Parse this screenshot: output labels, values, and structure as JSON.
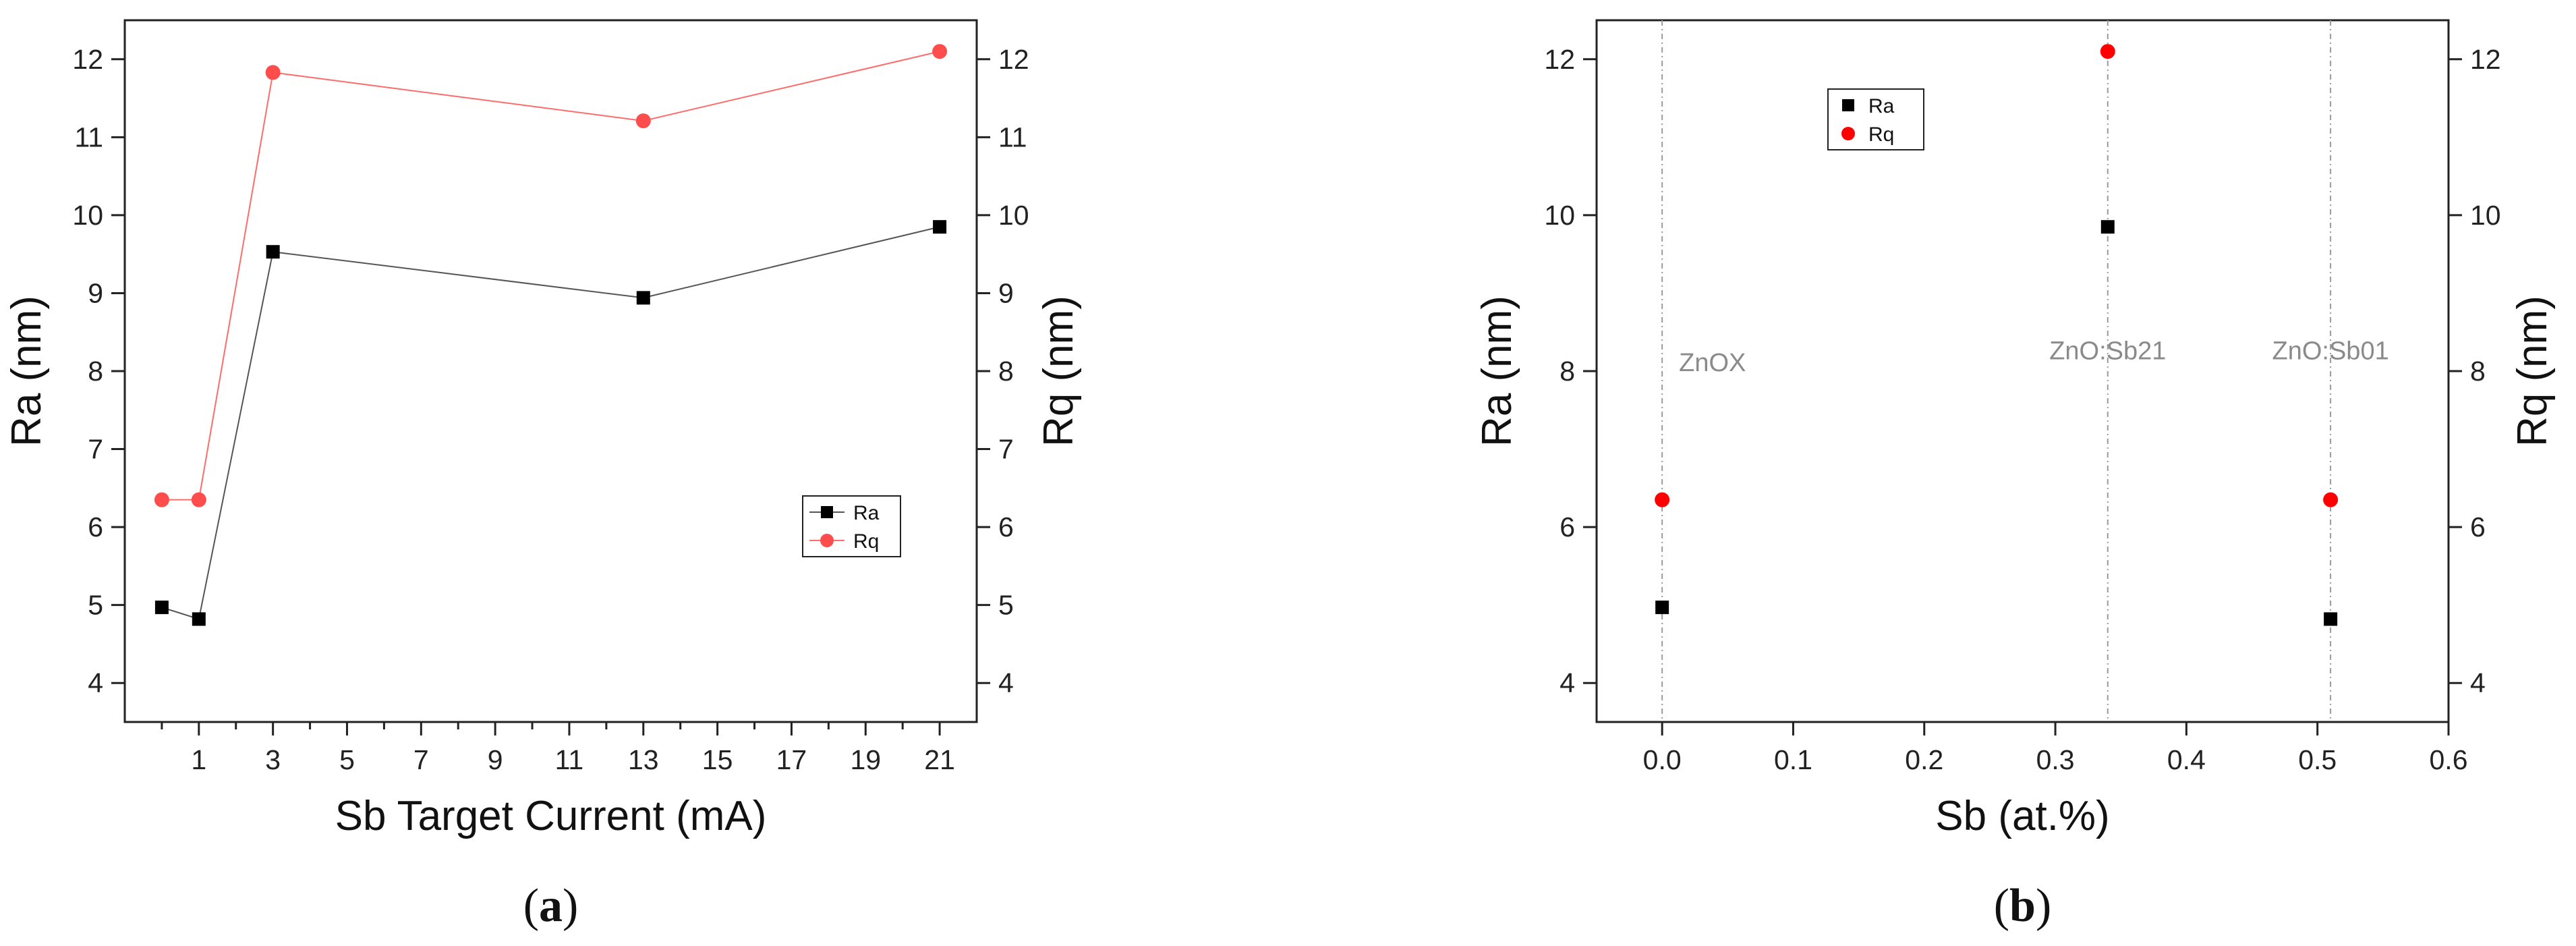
{
  "chart_data": [
    {
      "type": "line",
      "panel_label_open": "(",
      "panel_label_letter": "a",
      "panel_label_close": ")",
      "xlabel": "Sb Target Current (mA)",
      "ylabel": "Ra (nm)",
      "y2label": "Rq (nm)",
      "xlim": [
        -1,
        22
      ],
      "ylim": [
        3.5,
        12.5
      ],
      "y2lim": [
        3.5,
        12.5
      ],
      "xticks": [
        1,
        3,
        5,
        7,
        9,
        11,
        13,
        15,
        17,
        19,
        21
      ],
      "xticks_minor": [
        0,
        2,
        4,
        6,
        8,
        10,
        12,
        14,
        16,
        18,
        20
      ],
      "yticks": [
        4,
        5,
        6,
        7,
        8,
        9,
        10,
        11,
        12
      ],
      "legend_position": "lower-right",
      "series": [
        {
          "name": "Ra",
          "axis": "left",
          "marker": "square",
          "color": "#000000",
          "line_color": "#555555",
          "x": [
            0,
            1,
            3,
            13,
            21
          ],
          "y": [
            4.97,
            4.82,
            9.53,
            8.94,
            9.85
          ]
        },
        {
          "name": "Rq",
          "axis": "right",
          "marker": "circle",
          "color": "#ff4c4c",
          "line_color": "#ff6b6b",
          "x": [
            0,
            1,
            3,
            13,
            21
          ],
          "y": [
            6.35,
            6.35,
            11.83,
            11.21,
            12.1
          ]
        }
      ]
    },
    {
      "type": "scatter",
      "panel_label_open": "(",
      "panel_label_letter": "b",
      "panel_label_close": ")",
      "xlabel": "Sb (at.%)",
      "ylabel": "Ra (nm)",
      "y2label": "Rq (nm)",
      "xlim": [
        -0.05,
        0.6
      ],
      "ylim": [
        3.5,
        12.5
      ],
      "y2lim": [
        3.5,
        12.5
      ],
      "xticks": [
        0.0,
        0.1,
        0.2,
        0.3,
        0.4,
        0.5,
        0.6
      ],
      "xtick_labels": [
        "0.0",
        "0.1",
        "0.2",
        "0.3",
        "0.4",
        "0.5",
        "0.6"
      ],
      "yticks": [
        4,
        6,
        8,
        10,
        12
      ],
      "legend_position": "top-left",
      "vlines": [
        0.0,
        0.34,
        0.51
      ],
      "annotations": [
        {
          "text": "ZnOX",
          "x": 0.0,
          "y": 8.0
        },
        {
          "text": "ZnO:Sb21",
          "x": 0.34,
          "y": 8.15
        },
        {
          "text": "ZnO:Sb01",
          "x": 0.51,
          "y": 8.15
        }
      ],
      "series": [
        {
          "name": "Ra",
          "axis": "left",
          "marker": "square",
          "color": "#000000",
          "x": [
            0.0,
            0.34,
            0.51
          ],
          "y": [
            4.97,
            9.85,
            4.82
          ]
        },
        {
          "name": "Rq",
          "axis": "right",
          "marker": "circle",
          "color": "#ff0000",
          "x": [
            0.0,
            0.34,
            0.51
          ],
          "y": [
            6.35,
            12.1,
            6.35
          ]
        }
      ]
    }
  ]
}
